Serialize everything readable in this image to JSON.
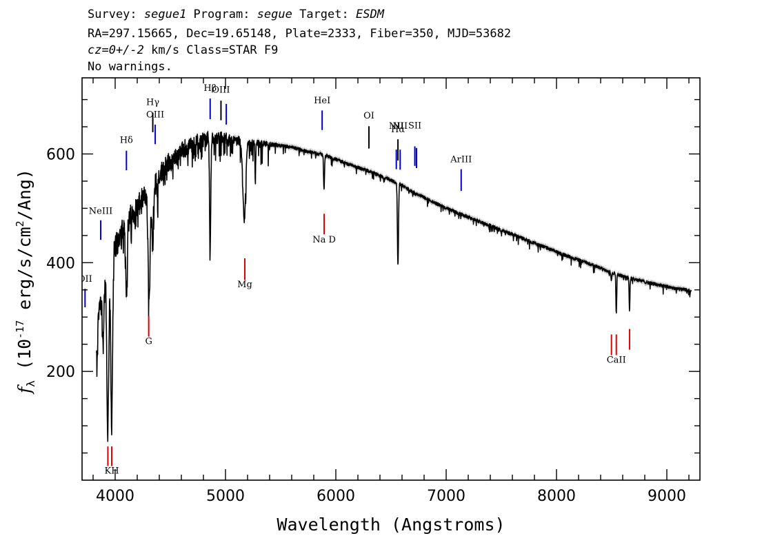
{
  "header": {
    "line1": {
      "survey_label": "Survey: ",
      "survey": "segue1",
      "program_label": " Program: ",
      "program": "segue",
      "target_label": " Target: ",
      "target": "ESDM"
    },
    "line2": "RA=297.15665, Dec=19.65148, Plate=2333, Fiber=350, MJD=53682",
    "line3": {
      "cz": "cz=0+/-2",
      "rest": " km/s Class=STAR F9"
    },
    "line4": "No warnings."
  },
  "chart_data": {
    "type": "line",
    "xlabel": "Wavelength (Angstroms)",
    "ylabel_parts": {
      "f": "f",
      "sub": "λ",
      "a": " (10",
      "exp": "-17",
      "b": " erg/s/cm",
      "exp2": "2",
      "c": "/Ang)"
    },
    "xlim": [
      3700,
      9300
    ],
    "ylim": [
      0,
      740
    ],
    "xticks": [
      4000,
      5000,
      6000,
      7000,
      8000,
      9000
    ],
    "xticks_minor_step": 200,
    "yticks": [
      200,
      400,
      600
    ],
    "yticks_minor_step": 50,
    "grid": false,
    "series_color": "#000000",
    "error_color": "#b8b8b8",
    "continuum": [
      [
        3830,
        300
      ],
      [
        3900,
        360
      ],
      [
        4000,
        430
      ],
      [
        4100,
        470
      ],
      [
        4200,
        500
      ],
      [
        4300,
        530
      ],
      [
        4400,
        560
      ],
      [
        4500,
        585
      ],
      [
        4600,
        605
      ],
      [
        4700,
        618
      ],
      [
        4800,
        628
      ],
      [
        4900,
        630
      ],
      [
        5000,
        628
      ],
      [
        5100,
        625
      ],
      [
        5200,
        622
      ],
      [
        5300,
        620
      ],
      [
        5400,
        618
      ],
      [
        5500,
        615
      ],
      [
        5600,
        612
      ],
      [
        5700,
        607
      ],
      [
        5800,
        602
      ],
      [
        5900,
        598
      ],
      [
        6000,
        590
      ],
      [
        6100,
        582
      ],
      [
        6200,
        575
      ],
      [
        6300,
        568
      ],
      [
        6400,
        560
      ],
      [
        6500,
        552
      ],
      [
        6600,
        542
      ],
      [
        6700,
        530
      ],
      [
        6800,
        520
      ],
      [
        6900,
        510
      ],
      [
        7000,
        500
      ],
      [
        7100,
        492
      ],
      [
        7200,
        484
      ],
      [
        7300,
        476
      ],
      [
        7400,
        468
      ],
      [
        7500,
        460
      ],
      [
        7600,
        452
      ],
      [
        7700,
        444
      ],
      [
        7800,
        436
      ],
      [
        7900,
        428
      ],
      [
        8000,
        420
      ],
      [
        8100,
        412
      ],
      [
        8200,
        405
      ],
      [
        8300,
        398
      ],
      [
        8400,
        390
      ],
      [
        8500,
        382
      ],
      [
        8600,
        375
      ],
      [
        8700,
        370
      ],
      [
        8800,
        365
      ],
      [
        8900,
        360
      ],
      [
        9000,
        356
      ],
      [
        9100,
        352
      ],
      [
        9220,
        348
      ]
    ],
    "absorption_features": [
      {
        "x": 3933,
        "min": 88,
        "w": 12
      },
      {
        "x": 3968,
        "min": 110,
        "w": 12
      },
      {
        "x": 3890,
        "min": 250,
        "w": 10
      },
      {
        "x": 3835,
        "min": 200,
        "w": 8
      },
      {
        "x": 4102,
        "min": 345,
        "w": 10
      },
      {
        "x": 4308,
        "min": 330,
        "w": 14
      },
      {
        "x": 4340,
        "min": 420,
        "w": 8
      },
      {
        "x": 4384,
        "min": 520,
        "w": 5
      },
      {
        "x": 4861,
        "min": 425,
        "w": 8
      },
      {
        "x": 5170,
        "min": 480,
        "w": 18
      },
      {
        "x": 5270,
        "min": 555,
        "w": 5
      },
      {
        "x": 5893,
        "min": 535,
        "w": 6
      },
      {
        "x": 6563,
        "min": 395,
        "w": 7
      },
      {
        "x": 8498,
        "min": 368,
        "w": 5
      },
      {
        "x": 8542,
        "min": 305,
        "w": 5
      },
      {
        "x": 8662,
        "min": 312,
        "w": 5
      }
    ],
    "emission_lines": [
      {
        "label": "OII",
        "x": 3727,
        "y0": 318,
        "y1": 352,
        "color": "#0000cc",
        "label_y": 365
      },
      {
        "label": "NeIII",
        "x": 3869,
        "y0": 442,
        "y1": 478,
        "color": "#0000cc",
        "label_y": 490
      },
      {
        "label": "Hδ",
        "x": 4102,
        "y0": 570,
        "y1": 606,
        "color": "#0000cc",
        "label_y": 620
      },
      {
        "label": "Hγ",
        "x": 4341,
        "y0": 640,
        "y1": 676,
        "color": "#000000",
        "label_y": 690
      },
      {
        "label": "OIII",
        "x": 4363,
        "y0": 618,
        "y1": 654,
        "color": "#0000cc",
        "label_y": 667
      },
      {
        "label": "Hβ",
        "x": 4861,
        "y0": 664,
        "y1": 702,
        "color": "#0000cc",
        "label_y": 716
      },
      {
        "label": "OIII",
        "x": 4959,
        "y0": 662,
        "y1": 698,
        "color": "#000000",
        "label_y": 713
      },
      {
        "label": "",
        "x": 5007,
        "y0": 654,
        "y1": 692,
        "color": "#0000cc",
        "label_y": 0
      },
      {
        "label": "HeI",
        "x": 5876,
        "y0": 644,
        "y1": 680,
        "color": "#0000cc",
        "label_y": 693
      },
      {
        "label": "OI",
        "x": 6300,
        "y0": 610,
        "y1": 651,
        "color": "#000000",
        "label_y": 665
      },
      {
        "label": "NII",
        "x": 6548,
        "y0": 572,
        "y1": 608,
        "color": "#0000cc",
        "label_y": 646
      },
      {
        "label": "Hα",
        "x": 6563,
        "y0": 588,
        "y1": 627,
        "color": "#000000",
        "label_y": 640
      },
      {
        "label": "NII",
        "x": 6583,
        "y0": 571,
        "y1": 608,
        "color": "#0000cc",
        "label_y": 646
      },
      {
        "label": "SII",
        "x": 6716,
        "y0": 578,
        "y1": 614,
        "color": "#0000cc",
        "label_y": 647
      },
      {
        "label": "",
        "x": 6731,
        "y0": 574,
        "y1": 611,
        "color": "#0000cc",
        "label_y": 0
      },
      {
        "label": "ArIII",
        "x": 7136,
        "y0": 532,
        "y1": 572,
        "color": "#0000cc",
        "label_y": 585
      }
    ],
    "absorption_lines": [
      {
        "label": "",
        "x": 3934,
        "y0": 26,
        "y1": 62,
        "color": "#dd0000",
        "label_y": 0
      },
      {
        "label": "KH",
        "x": 3969,
        "y0": 26,
        "y1": 62,
        "color": "#dd0000",
        "label_y": 12
      },
      {
        "label": "G",
        "x": 4304,
        "y0": 264,
        "y1": 302,
        "color": "#dd0000",
        "label_y": 250
      },
      {
        "label": "Mg",
        "x": 5175,
        "y0": 368,
        "y1": 408,
        "color": "#dd0000",
        "label_y": 355
      },
      {
        "label": "Na D",
        "x": 5894,
        "y0": 452,
        "y1": 490,
        "color": "#dd0000",
        "label_y": 437
      },
      {
        "label": "",
        "x": 8498,
        "y0": 230,
        "y1": 268,
        "color": "#dd0000",
        "label_y": 0
      },
      {
        "label": "CaII",
        "x": 8542,
        "y0": 230,
        "y1": 268,
        "color": "#dd0000",
        "label_y": 216
      },
      {
        "label": "",
        "x": 8662,
        "y0": 240,
        "y1": 278,
        "color": "#dd0000",
        "label_y": 0
      }
    ]
  }
}
